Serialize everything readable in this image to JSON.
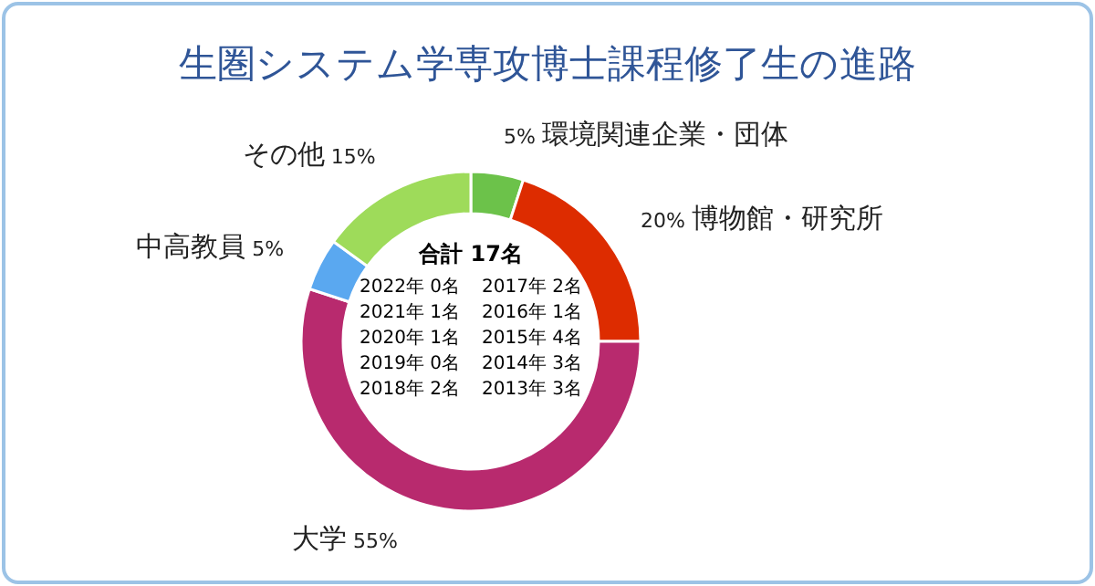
{
  "chart_data": {
    "type": "donut",
    "title": "生圏システム学専攻博士課程修了生の進路",
    "categories": [
      "環境関連企業・団体",
      "博物館・研究所",
      "大学",
      "中高教員",
      "その他"
    ],
    "values": [
      5,
      20,
      55,
      5,
      15
    ],
    "colors": [
      "#6cc24a",
      "#dd2c00",
      "#b82a6e",
      "#5aa8f0",
      "#9edb5a"
    ],
    "value_labels": [
      "5%",
      "20%",
      "55%",
      "5%",
      "15%"
    ],
    "annotations": [
      "合計 17名",
      "2022年 0名",
      "2017年 2名",
      "2021年 1名",
      "2016年 1名",
      "2020年 1名",
      "2015年 4名",
      "2019年 0名",
      "2014年 3名",
      "2018年 2名",
      "2013年 3名"
    ]
  }
}
